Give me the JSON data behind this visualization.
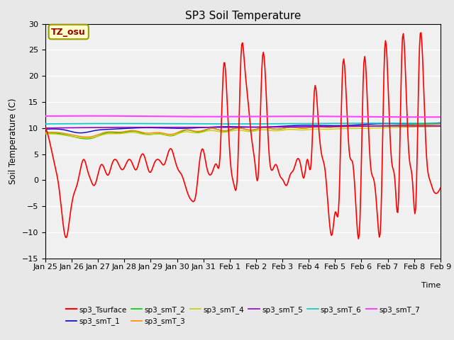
{
  "title": "SP3 Soil Temperature",
  "ylabel": "Soil Temperature (C)",
  "xlabel": "Time",
  "ylim": [
    -15,
    30
  ],
  "background_color": "#e8e8e8",
  "plot_bg_color": "#f0f0f0",
  "annotation_text": "TZ_osu",
  "annotation_color": "#990000",
  "annotation_bg": "#ffffcc",
  "annotation_border": "#999900",
  "xtick_labels": [
    "Jan 25",
    "Jan 26",
    "Jan 27",
    "Jan 28",
    "Jan 29",
    "Jan 30",
    "Jan 31",
    "Feb 1",
    "Feb 2",
    "Feb 3",
    "Feb 4",
    "Feb 5",
    "Feb 6",
    "Feb 7",
    "Feb 8",
    "Feb 9"
  ],
  "series": {
    "sp3_Tsurface": {
      "color": "#ff0000",
      "lw": 1.2
    },
    "sp3_smT_1": {
      "color": "#0000cc",
      "lw": 1.0
    },
    "sp3_smT_2": {
      "color": "#00cc00",
      "lw": 1.0
    },
    "sp3_smT_3": {
      "color": "#ff8800",
      "lw": 1.0
    },
    "sp3_smT_4": {
      "color": "#cccc00",
      "lw": 1.0
    },
    "sp3_smT_5": {
      "color": "#9900cc",
      "lw": 1.2
    },
    "sp3_smT_6": {
      "color": "#00cccc",
      "lw": 1.2
    },
    "sp3_smT_7": {
      "color": "#ff44ff",
      "lw": 1.5
    }
  },
  "surf_data": [
    10.0,
    8.0,
    5.0,
    2.0,
    -2.0,
    -8.0,
    -11.0,
    -7.0,
    -3.0,
    -1.0,
    2.0,
    4.0,
    2.0,
    0.0,
    -1.0,
    1.0,
    3.0,
    2.0,
    1.0,
    3.0,
    4.0,
    3.0,
    2.0,
    3.0,
    4.0,
    3.0,
    2.0,
    4.0,
    5.0,
    3.0,
    1.5,
    3.0,
    4.0,
    3.5,
    3.0,
    5.0,
    6.0,
    4.0,
    2.0,
    1.0,
    -1.0,
    -3.0,
    -4.0,
    -3.0,
    3.0,
    6.0,
    3.0,
    1.0,
    2.0,
    3.0,
    5.0,
    22.0,
    15.0,
    3.0,
    -1.0,
    2.0,
    24.5,
    22.0,
    15.0,
    8.0,
    3.0,
    2.0,
    22.5,
    19.0,
    5.0,
    2.0,
    3.0,
    1.0,
    0.0,
    -1.0,
    1.0,
    2.0,
    4.0,
    3.0,
    0.5,
    4.0,
    3.0,
    17.5,
    12.0,
    5.0,
    2.0,
    -6.0,
    -10.5,
    -6.0,
    -4.0,
    21.0,
    17.0,
    5.0,
    3.0,
    -7.0,
    -7.5,
    21.0,
    17.0,
    3.0,
    0.0,
    -7.0,
    -7.0,
    24.0,
    19.0,
    4.0,
    0.0,
    -4.5,
    25.0,
    21.0,
    5.0,
    0.0,
    -4.5,
    25.0,
    22.0,
    5.0,
    0.0,
    -2.0,
    -2.5,
    -1.5
  ]
}
